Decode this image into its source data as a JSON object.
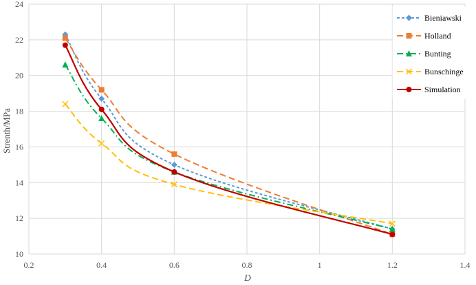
{
  "chart_data": {
    "type": "line",
    "title": "",
    "xlabel": "D",
    "ylabel": "Strenth/MPa",
    "xlim": [
      0.2,
      1.4
    ],
    "ylim": [
      10,
      24
    ],
    "xticks": [
      "0.2",
      "0.4",
      "0.6",
      "0.8",
      "1",
      "1.2",
      "1.4"
    ],
    "yticks": [
      "10",
      "12",
      "14",
      "16",
      "18",
      "20",
      "22",
      "24"
    ],
    "grid": true,
    "legend_position": "right",
    "series": [
      {
        "name": "Bieniawski",
        "color": "#5B9BD5",
        "marker": "diamond",
        "dash": "dashed",
        "x": [
          0.3,
          0.4,
          0.6,
          1.2
        ],
        "y": [
          22.3,
          18.7,
          15.0,
          11.4
        ]
      },
      {
        "name": "Holland",
        "color": "#ED7D31",
        "marker": "square",
        "dash": "long-dash",
        "x": [
          0.3,
          0.4,
          0.6,
          1.2
        ],
        "y": [
          22.1,
          19.2,
          15.6,
          11.1
        ]
      },
      {
        "name": "Bunting",
        "color": "#00B050",
        "marker": "triangle",
        "dash": "dash-dot",
        "x": [
          0.3,
          0.4,
          0.6,
          1.2
        ],
        "y": [
          20.6,
          17.6,
          14.6,
          11.4
        ]
      },
      {
        "name": "Bunschinge",
        "color": "#FFC000",
        "marker": "x",
        "dash": "long-dash",
        "x": [
          0.3,
          0.4,
          0.6,
          1.2
        ],
        "y": [
          18.4,
          16.2,
          13.9,
          11.7
        ]
      },
      {
        "name": "Simulation",
        "color": "#C00000",
        "marker": "circle",
        "dash": "solid",
        "x": [
          0.3,
          0.4,
          0.6,
          1.2
        ],
        "y": [
          21.7,
          18.1,
          14.6,
          11.1
        ]
      }
    ]
  }
}
